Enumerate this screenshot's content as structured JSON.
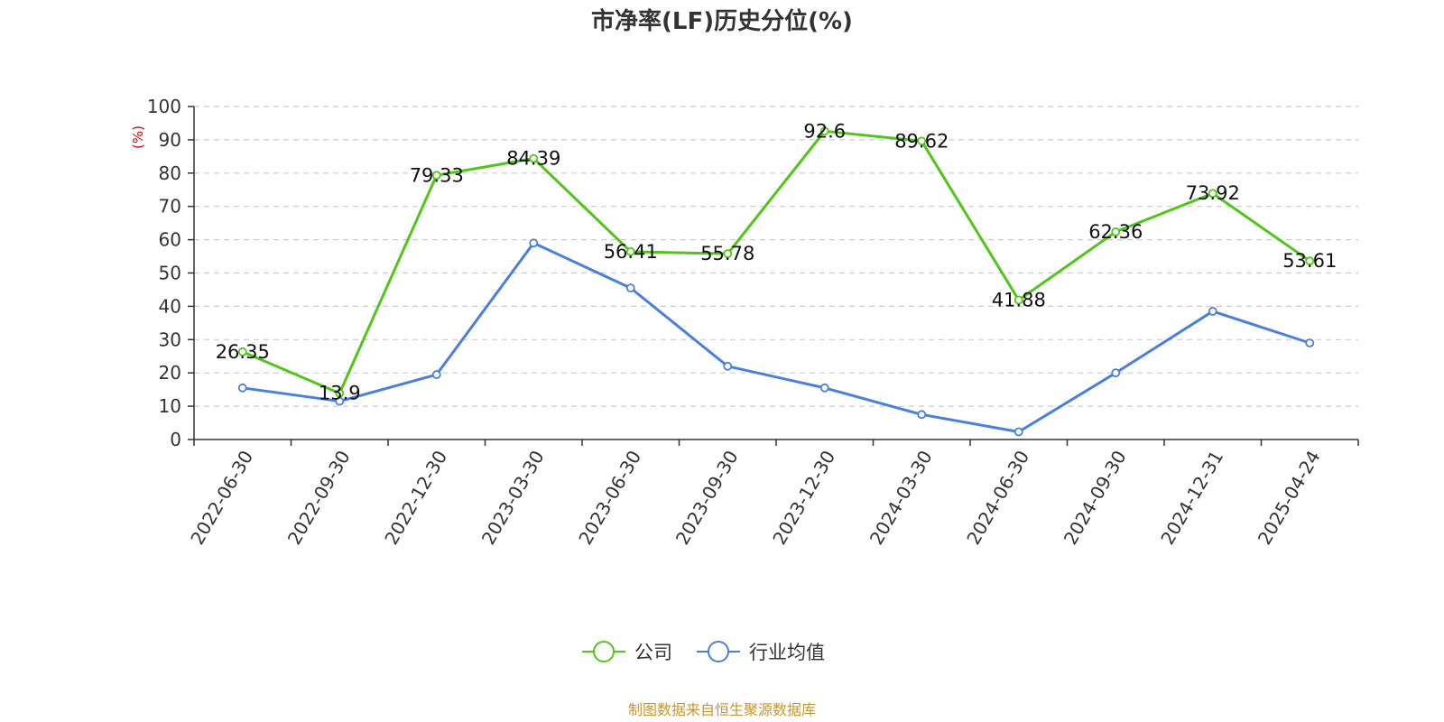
{
  "chart_data": {
    "type": "line",
    "title": "市净率(LF)历史分位(%)",
    "ylabel": "(%)",
    "ylim": [
      0,
      100
    ],
    "yticks": [
      0,
      10,
      20,
      30,
      40,
      50,
      60,
      70,
      80,
      90,
      100
    ],
    "categories": [
      "2022-06-30",
      "2022-09-30",
      "2022-12-30",
      "2023-03-30",
      "2023-06-30",
      "2023-09-30",
      "2023-12-30",
      "2024-03-30",
      "2024-06-30",
      "2024-09-30",
      "2024-12-31",
      "2025-04-24"
    ],
    "grid": true,
    "legend_position": "bottom",
    "series": [
      {
        "name": "公司",
        "color": "#52c41a",
        "values": [
          26.35,
          13.9,
          79.33,
          84.39,
          56.41,
          55.78,
          92.6,
          89.62,
          41.88,
          62.36,
          73.92,
          53.61
        ],
        "labels": [
          "26.35",
          "13.9",
          "79.33",
          "84.39",
          "56.41",
          "55.78",
          "92.6",
          "89.62",
          "41.88",
          "62.36",
          "73.92",
          "53.61"
        ]
      },
      {
        "name": "行业均值",
        "color": "#4a7fdb",
        "values": [
          15.5,
          11.5,
          19.5,
          59,
          45.5,
          22,
          15.5,
          7.5,
          2.3,
          20,
          38.5,
          29
        ]
      }
    ]
  },
  "source": "制图数据来自恒生聚源数据库"
}
